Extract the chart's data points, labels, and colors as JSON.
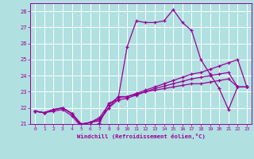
{
  "background_color": "#b0e0e0",
  "grid_color": "#ffffff",
  "line_color": "#990099",
  "xlabel": "Windchill (Refroidissement éolien,°C)",
  "ylim": [
    21.0,
    28.5
  ],
  "xlim": [
    -0.5,
    23.5
  ],
  "yticks": [
    21,
    22,
    23,
    24,
    25,
    26,
    27,
    28
  ],
  "xticks": [
    0,
    1,
    2,
    3,
    4,
    5,
    6,
    7,
    8,
    9,
    10,
    11,
    12,
    13,
    14,
    15,
    16,
    17,
    18,
    19,
    20,
    21,
    22,
    23
  ],
  "series": [
    [
      21.8,
      21.7,
      21.8,
      21.9,
      21.5,
      20.85,
      20.8,
      21.05,
      22.3,
      22.5,
      25.8,
      27.4,
      27.3,
      27.3,
      27.4,
      28.1,
      27.3,
      26.8,
      25.0,
      24.1,
      23.2,
      21.9,
      23.3,
      23.3
    ],
    [
      21.8,
      21.7,
      21.9,
      22.0,
      21.65,
      20.9,
      21.1,
      21.2,
      22.0,
      22.7,
      22.7,
      22.9,
      23.1,
      23.3,
      23.5,
      23.7,
      23.9,
      24.1,
      24.2,
      24.4,
      24.6,
      24.8,
      25.0,
      23.3
    ],
    [
      21.8,
      21.7,
      21.9,
      22.0,
      21.65,
      21.0,
      21.1,
      21.3,
      22.0,
      22.5,
      22.6,
      22.8,
      23.0,
      23.2,
      23.35,
      23.5,
      23.65,
      23.8,
      23.9,
      24.0,
      24.1,
      24.2,
      23.3,
      23.3
    ],
    [
      21.8,
      21.7,
      21.9,
      22.0,
      21.65,
      21.0,
      21.1,
      21.4,
      22.2,
      22.65,
      22.7,
      22.85,
      23.0,
      23.1,
      23.2,
      23.3,
      23.4,
      23.5,
      23.5,
      23.6,
      23.7,
      23.8,
      23.3,
      23.3
    ]
  ]
}
